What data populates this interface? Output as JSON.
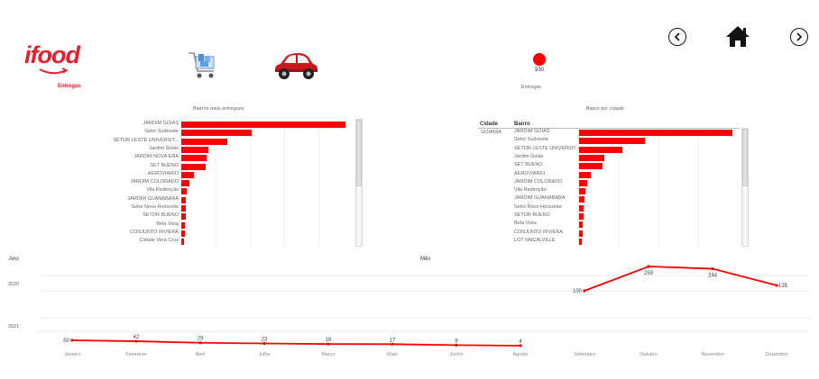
{
  "header": {
    "logo_text": "ifood",
    "logo_sub": "Entregas",
    "kpi_value": "930",
    "kpi_label": "Entregas"
  },
  "nav": {
    "back_icon": "chevron-left-icon",
    "home_icon": "home-icon",
    "forward_icon": "chevron-right-icon"
  },
  "bairros_chart": {
    "title": "Bairros mais entregues",
    "rows": [
      {
        "label": "JARDIM GOIAS",
        "value": 1.0
      },
      {
        "label": "Setor Sudoeste",
        "value": 0.43
      },
      {
        "label": "SETOR LESTE UNIVERSIT...",
        "value": 0.28
      },
      {
        "label": "Jardim Goiás",
        "value": 0.165
      },
      {
        "label": "JARDIM NOVA ERA",
        "value": 0.155
      },
      {
        "label": "SET BUENO",
        "value": 0.15
      },
      {
        "label": "AEROVIARIO",
        "value": 0.075
      },
      {
        "label": "JARDIM COLORADO",
        "value": 0.05
      },
      {
        "label": "Vila Redenção",
        "value": 0.035
      },
      {
        "label": "JARDIM GUANABARA",
        "value": 0.03
      },
      {
        "label": "Setor Novo Horizonte",
        "value": 0.027
      },
      {
        "label": "SETOR BUENO",
        "value": 0.025
      },
      {
        "label": "Bela Vista",
        "value": 0.022
      },
      {
        "label": "CONJUNTO RIVIERA",
        "value": 0.02
      },
      {
        "label": "Cidade Vera Cruz",
        "value": 0.018
      }
    ]
  },
  "cidade_chart": {
    "title": "Bairro por cidade",
    "col_cidade": "Cidade",
    "col_bairro": "Bairro",
    "cidade": "GOIANIA",
    "rows": [
      {
        "label": "JARDIM GOIAS",
        "value": 1.0
      },
      {
        "label": "Setor Sudoeste",
        "value": 0.43
      },
      {
        "label": "SETOR LESTE UNIVERSIT...",
        "value": 0.28
      },
      {
        "label": "Jardim Goiás",
        "value": 0.165
      },
      {
        "label": "SET BUENO",
        "value": 0.155
      },
      {
        "label": "AEROVIARIO",
        "value": 0.075
      },
      {
        "label": "JARDIM COLORADO",
        "value": 0.05
      },
      {
        "label": "Vila Redenção",
        "value": 0.04
      },
      {
        "label": "JARDIM GUANABARA",
        "value": 0.035
      },
      {
        "label": "Setor Novo Horizonte",
        "value": 0.03
      },
      {
        "label": "SETOR BUENO",
        "value": 0.027
      },
      {
        "label": "Bela Vista",
        "value": 0.025
      },
      {
        "label": "CONJUNTO RIVIERA",
        "value": 0.022
      },
      {
        "label": "LOT FAICALVILLE",
        "value": 0.02
      }
    ]
  },
  "chart_data": {
    "type": "line",
    "ano_label": "Ano",
    "mes_label": "Mês",
    "years": [
      "2020",
      "2021"
    ],
    "categories": [
      "Janeiro",
      "Fevereiro",
      "Abril",
      "Julho",
      "Março",
      "Maio",
      "Junho",
      "Agosto",
      "Setembro",
      "Outubro",
      "Novembro",
      "Dezembro"
    ],
    "series": [
      {
        "year": "2020",
        "points": [
          {
            "month": "Setembro",
            "value": 100
          },
          {
            "month": "Outubro",
            "value": 259
          },
          {
            "month": "Novembro",
            "value": 244
          },
          {
            "month": "Dezembro",
            "value": 135
          }
        ]
      },
      {
        "year": "2021",
        "points": [
          {
            "month": "Janeiro",
            "value": 50
          },
          {
            "month": "Fevereiro",
            "value": 42
          },
          {
            "month": "Abril",
            "value": 29
          },
          {
            "month": "Julho",
            "value": 23
          },
          {
            "month": "Março",
            "value": 18
          },
          {
            "month": "Maio",
            "value": 17
          },
          {
            "month": "Junho",
            "value": 9
          },
          {
            "month": "Agosto",
            "value": 4
          }
        ]
      }
    ],
    "line_color": "#ff0000"
  }
}
